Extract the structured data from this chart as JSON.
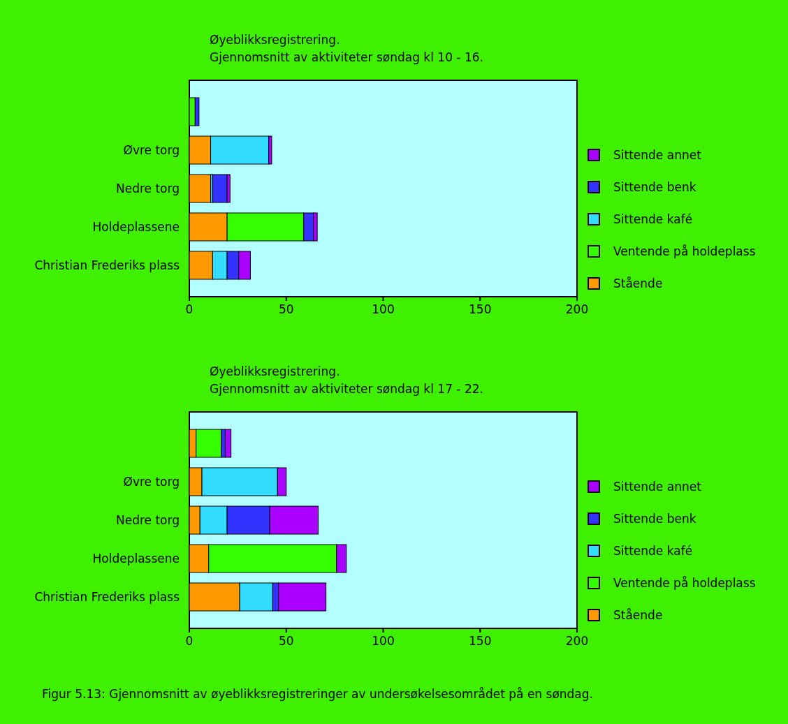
{
  "chart_data": [
    {
      "type": "bar",
      "orientation": "horizontal",
      "stacked": true,
      "title": "Øyeblikksregistrering.",
      "subtitle": "Gjennomsnitt av aktiviteter søndag kl 10 - 16.",
      "categories": [
        null,
        "Øvre torg",
        "Nedre torg",
        "Holdeplassene",
        "Christian Frederiks plass"
      ],
      "series": [
        {
          "name": "Stående",
          "color": "#ff9900",
          "values": [
            0,
            11,
            11,
            19.5,
            12
          ]
        },
        {
          "name": "Ventende på holdeplass",
          "color": "#33ff00",
          "values": [
            3,
            0,
            0,
            39.5,
            0
          ]
        },
        {
          "name": "Sittende kafé",
          "color": "#33ddff",
          "values": [
            0,
            30,
            1,
            0,
            7.5
          ]
        },
        {
          "name": "Sittende benk",
          "color": "#3333ff",
          "values": [
            2,
            0,
            7.5,
            5,
            6
          ]
        },
        {
          "name": "Sittende annet",
          "color": "#aa00ff",
          "values": [
            0,
            1.5,
            1.5,
            2,
            6
          ]
        }
      ],
      "xlim": [
        0,
        200
      ],
      "xticks": [
        0,
        50,
        100,
        150,
        200
      ],
      "legend": "right",
      "grid": false
    },
    {
      "type": "bar",
      "orientation": "horizontal",
      "stacked": true,
      "title": "Øyeblikksregistrering.",
      "subtitle": "Gjennomsnitt av aktiviteter søndag kl 17 - 22.",
      "categories": [
        null,
        "Øvre torg",
        "Nedre torg",
        "Holdeplassene",
        "Christian Frederiks plass"
      ],
      "series": [
        {
          "name": "Stående",
          "color": "#ff9900",
          "values": [
            3.5,
            6.5,
            5.5,
            10,
            26
          ]
        },
        {
          "name": "Ventende på holdeplass",
          "color": "#33ff00",
          "values": [
            13,
            0,
            0,
            66,
            0
          ]
        },
        {
          "name": "Sittende kafé",
          "color": "#33ddff",
          "values": [
            0,
            39,
            14,
            0,
            17
          ]
        },
        {
          "name": "Sittende benk",
          "color": "#3333ff",
          "values": [
            2,
            0,
            22,
            0,
            3
          ]
        },
        {
          "name": "Sittende annet",
          "color": "#aa00ff",
          "values": [
            3,
            4.5,
            25,
            5,
            24.5
          ]
        }
      ],
      "xlim": [
        0,
        200
      ],
      "xticks": [
        0,
        50,
        100,
        150,
        200
      ],
      "legend": "right",
      "grid": false,
      "annotations": [
        "Figur 5.13: Gjennomsnitt av øyeblikksregistreringer av undersøkelsesområdet på en søndag."
      ]
    }
  ]
}
